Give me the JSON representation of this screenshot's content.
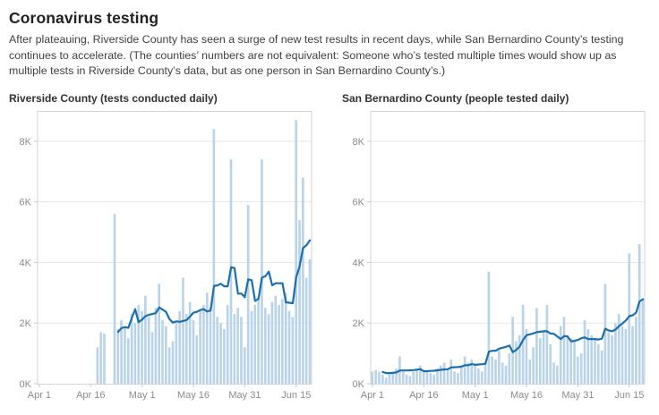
{
  "header": {
    "title": "Coronavirus testing",
    "description": "After plateauing, Riverside County has seen a surge of new test results in recent days, while San Bernardino County’s testing continues to accelerate. (The counties’ numbers are not equivalent: Someone who’s tested multiple times would show up as multiple tests in Riverside County’s data, but as one person in San Bernardino County’s.)"
  },
  "chart_data": [
    {
      "type": "bar",
      "title": "Riverside County (tests conducted daily)",
      "x_start": "Apr 1",
      "x_end": "Jun 19",
      "ylim": [
        0,
        9000
      ],
      "y_ticks": [
        0,
        2000,
        4000,
        6000,
        8000
      ],
      "x_ticks": [
        {
          "label": "Apr 1",
          "index": 0
        },
        {
          "label": "Apr 16",
          "index": 15
        },
        {
          "label": "May 1",
          "index": 30
        },
        {
          "label": "May 16",
          "index": 45
        },
        {
          "label": "May 31",
          "index": 60
        },
        {
          "label": "Jun 15",
          "index": 75
        }
      ],
      "values": [
        0,
        0,
        0,
        0,
        0,
        0,
        0,
        0,
        0,
        0,
        0,
        0,
        0,
        0,
        0,
        0,
        0,
        1200,
        1700,
        1650,
        0,
        0,
        5600,
        1800,
        2100,
        1900,
        1500,
        2300,
        2000,
        2600,
        2400,
        2900,
        2200,
        1700,
        2500,
        3300,
        2100,
        1900,
        1200,
        1400,
        2000,
        2400,
        3500,
        2300,
        2700,
        2100,
        1600,
        2400,
        2600,
        3000,
        2500,
        8400,
        2200,
        2000,
        1800,
        2600,
        7400,
        2300,
        2500,
        2200,
        1200,
        5900,
        2400,
        2600,
        2800,
        7400,
        2500,
        2300,
        2700,
        2900,
        2600,
        2800,
        3000,
        2400,
        2200,
        8700,
        5400,
        6800,
        3500,
        4100
      ],
      "line": "7-day average",
      "line_start_index": 23,
      "bar_color": "#b9d3e8",
      "line_color": "#1c6fad",
      "grid": true,
      "legend": "none"
    },
    {
      "type": "bar",
      "title": "San Bernardino County (people tested daily)",
      "x_start": "Apr 1",
      "x_end": "Jun 19",
      "ylim": [
        0,
        9000
      ],
      "y_ticks": [
        0,
        2000,
        4000,
        6000,
        8000
      ],
      "x_ticks": [
        {
          "label": "Apr 1",
          "index": 0
        },
        {
          "label": "Apr 16",
          "index": 15
        },
        {
          "label": "May 1",
          "index": 30
        },
        {
          "label": "May 16",
          "index": 45
        },
        {
          "label": "May 31",
          "index": 60
        },
        {
          "label": "Jun 15",
          "index": 75
        }
      ],
      "values": [
        400,
        450,
        400,
        300,
        200,
        350,
        400,
        500,
        900,
        400,
        300,
        250,
        400,
        500,
        600,
        450,
        400,
        350,
        300,
        500,
        600,
        700,
        500,
        800,
        400,
        350,
        600,
        900,
        700,
        800,
        600,
        500,
        400,
        700,
        3700,
        900,
        800,
        1100,
        700,
        600,
        1000,
        2200,
        1400,
        1600,
        2600,
        1800,
        800,
        1200,
        2500,
        1500,
        1700,
        2600,
        1300,
        700,
        600,
        1900,
        2200,
        1600,
        1500,
        1400,
        900,
        1000,
        2100,
        1800,
        1600,
        1500,
        1300,
        1100,
        3300,
        1700,
        1600,
        2000,
        2300,
        1900,
        1800,
        4300,
        1900,
        2200,
        4600,
        2800
      ],
      "line": "7-day average",
      "line_start_index": 3,
      "bar_color": "#b9d3e8",
      "line_color": "#1c6fad",
      "grid": true,
      "legend": "none"
    }
  ]
}
